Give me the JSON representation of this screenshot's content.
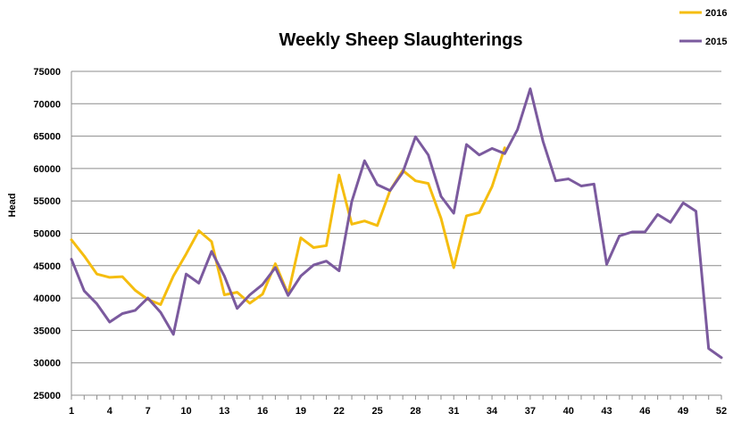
{
  "chart_data": {
    "type": "line",
    "title": "Weekly Sheep Slaughterings",
    "xlabel": "",
    "ylabel": "Head",
    "xlim": [
      1,
      52
    ],
    "ylim": [
      25000,
      75000
    ],
    "y_ticks": [
      "75000",
      "70000",
      "65000",
      "60000",
      "55000",
      "50000",
      "45000",
      "40000",
      "35000",
      "30000",
      "25000"
    ],
    "y_tick_values": [
      75000,
      70000,
      65000,
      60000,
      55000,
      50000,
      45000,
      40000,
      35000,
      30000,
      25000
    ],
    "x_ticks": [
      "1",
      "4",
      "7",
      "10",
      "13",
      "16",
      "19",
      "22",
      "25",
      "28",
      "31",
      "34",
      "37",
      "40",
      "43",
      "46",
      "49",
      "52"
    ],
    "x_tick_values": [
      1,
      4,
      7,
      10,
      13,
      16,
      19,
      22,
      25,
      28,
      31,
      34,
      37,
      40,
      43,
      46,
      49,
      52
    ],
    "grid": "horizontal",
    "legend_position": "top-right",
    "series": [
      {
        "name": "2016",
        "color": "#f5bd0f",
        "x": [
          1,
          2,
          3,
          4,
          5,
          6,
          7,
          8,
          9,
          10,
          11,
          12,
          13,
          14,
          15,
          16,
          17,
          18,
          19,
          20,
          21,
          22,
          23,
          24,
          25,
          26,
          27,
          28,
          29,
          30,
          31,
          32,
          33,
          34,
          35
        ],
        "values": [
          49000,
          46500,
          43700,
          43200,
          43300,
          41200,
          39800,
          39000,
          43400,
          46800,
          50400,
          48700,
          40500,
          40900,
          39200,
          40600,
          45300,
          40600,
          49300,
          47800,
          48100,
          59000,
          51400,
          51900,
          51200,
          56600,
          59700,
          58100,
          57700,
          52300,
          44700,
          52700,
          53200,
          57200,
          63200
        ]
      },
      {
        "name": "2015",
        "color": "#7b5a9e",
        "x": [
          1,
          2,
          3,
          4,
          5,
          6,
          7,
          8,
          9,
          10,
          11,
          12,
          13,
          14,
          15,
          16,
          17,
          18,
          19,
          20,
          21,
          22,
          23,
          24,
          25,
          26,
          27,
          28,
          29,
          30,
          31,
          32,
          33,
          34,
          35,
          36,
          37,
          38,
          39,
          40,
          41,
          42,
          43,
          44,
          45,
          46,
          47,
          48,
          49,
          50,
          51,
          52
        ],
        "values": [
          46000,
          41100,
          39100,
          36300,
          37600,
          38100,
          40000,
          37800,
          34400,
          43700,
          42300,
          47200,
          43400,
          38400,
          40500,
          42100,
          44700,
          40400,
          43400,
          45100,
          45700,
          44200,
          54900,
          61200,
          57500,
          56600,
          59400,
          64900,
          62100,
          55700,
          53100,
          63700,
          62100,
          63100,
          62300,
          66000,
          72300,
          64200,
          58100,
          58400,
          57300,
          57600,
          45200,
          49600,
          50200,
          50200,
          52900,
          51700,
          54700,
          53400,
          32200,
          30800
        ]
      }
    ]
  }
}
